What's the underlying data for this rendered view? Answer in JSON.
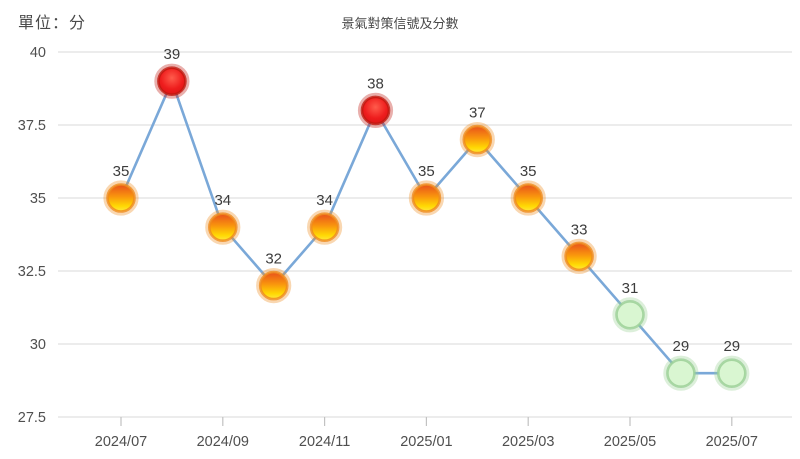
{
  "header": {
    "unit_label": "單位：分",
    "title": "景氣對策信號及分數"
  },
  "chart_data": {
    "type": "line",
    "title": "景氣對策信號及分數",
    "unit_label": "單位：分",
    "x": [
      "2024/07",
      "2024/08",
      "2024/09",
      "2024/10",
      "2024/11",
      "2024/12",
      "2025/01",
      "2025/02",
      "2025/03",
      "2025/04",
      "2025/05",
      "2025/06",
      "2025/07"
    ],
    "values": [
      35,
      39,
      34,
      32,
      34,
      38,
      35,
      37,
      35,
      33,
      31,
      29,
      29
    ],
    "signals": [
      "yellow-red",
      "red",
      "yellow-red",
      "yellow-red",
      "yellow-red",
      "red",
      "yellow-red",
      "yellow-red",
      "yellow-red",
      "yellow-red",
      "green",
      "green",
      "green"
    ],
    "ylim": [
      27.5,
      40
    ],
    "yticks": [
      40,
      37.5,
      35,
      32.5,
      30,
      27.5
    ],
    "xticks": [
      "2024/07",
      "2024/09",
      "2024/11",
      "2025/01",
      "2025/03",
      "2025/05",
      "2025/07"
    ],
    "grid": true,
    "legend": "none",
    "line_color": "#7aa8d8",
    "grid_color": "#e0e0e0",
    "tick_color": "#c2c2c2",
    "axis_label_color": "#4f4f4f",
    "value_label_color": "#3c3c3c",
    "signal_colors": {
      "red": {
        "gradient_type": "radial",
        "gradient": [
          [
            "0%",
            "#ff5c4c"
          ],
          [
            "55%",
            "#ee1d1d"
          ],
          [
            "100%",
            "#d21212"
          ]
        ],
        "ring": "#c01a10"
      },
      "yellow-red": {
        "gradient_type": "linear",
        "gradient": [
          [
            "0%",
            "#e8511c"
          ],
          [
            "45%",
            "#f9960d"
          ],
          [
            "80%",
            "#ffd903"
          ],
          [
            "100%",
            "#ffe93e"
          ]
        ],
        "ring": "#ef8c1f"
      },
      "green": {
        "fill": "#d9f6d1",
        "ring": "#9bd096"
      }
    }
  }
}
